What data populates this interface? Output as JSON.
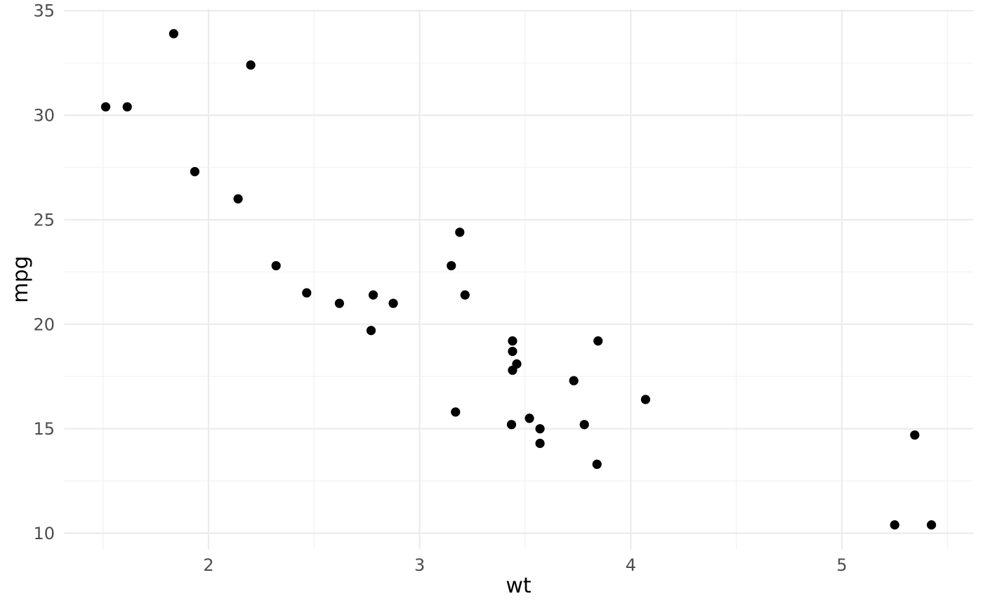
{
  "chart_data": {
    "type": "scatter",
    "title": "",
    "xlabel": "wt",
    "ylabel": "mpg",
    "x_ticks": [
      2,
      3,
      4,
      5
    ],
    "y_ticks": [
      10,
      15,
      20,
      25,
      30,
      35
    ],
    "x_minor": [
      1.5,
      2.5,
      3.5,
      4.5,
      5.5
    ],
    "y_minor": [
      12.5,
      17.5,
      22.5,
      27.5,
      32.5
    ],
    "xlim": [
      1.317,
      5.62
    ],
    "ylim": [
      9.225,
      35.075
    ],
    "grid": "major+minor",
    "legend": "none",
    "point_radius": 6.6,
    "colors": {
      "point": "#000000",
      "grid_major": "#ebebeb",
      "grid_minor": "#f4f4f4",
      "tick_text": "#4d4d4d",
      "axis_title": "#000000",
      "background": "#ffffff"
    },
    "points": [
      {
        "wt": 2.62,
        "mpg": 21.0
      },
      {
        "wt": 2.875,
        "mpg": 21.0
      },
      {
        "wt": 2.32,
        "mpg": 22.8
      },
      {
        "wt": 3.215,
        "mpg": 21.4
      },
      {
        "wt": 3.44,
        "mpg": 18.7
      },
      {
        "wt": 3.46,
        "mpg": 18.1
      },
      {
        "wt": 3.57,
        "mpg": 14.3
      },
      {
        "wt": 3.19,
        "mpg": 24.4
      },
      {
        "wt": 3.15,
        "mpg": 22.8
      },
      {
        "wt": 3.44,
        "mpg": 19.2
      },
      {
        "wt": 3.44,
        "mpg": 17.8
      },
      {
        "wt": 4.07,
        "mpg": 16.4
      },
      {
        "wt": 3.73,
        "mpg": 17.3
      },
      {
        "wt": 3.78,
        "mpg": 15.2
      },
      {
        "wt": 5.25,
        "mpg": 10.4
      },
      {
        "wt": 5.424,
        "mpg": 10.4
      },
      {
        "wt": 5.345,
        "mpg": 14.7
      },
      {
        "wt": 2.2,
        "mpg": 32.4
      },
      {
        "wt": 1.615,
        "mpg": 30.4
      },
      {
        "wt": 1.835,
        "mpg": 33.9
      },
      {
        "wt": 2.465,
        "mpg": 21.5
      },
      {
        "wt": 3.52,
        "mpg": 15.5
      },
      {
        "wt": 3.435,
        "mpg": 15.2
      },
      {
        "wt": 3.84,
        "mpg": 13.3
      },
      {
        "wt": 3.845,
        "mpg": 19.2
      },
      {
        "wt": 1.935,
        "mpg": 27.3
      },
      {
        "wt": 2.14,
        "mpg": 26.0
      },
      {
        "wt": 1.513,
        "mpg": 30.4
      },
      {
        "wt": 3.17,
        "mpg": 15.8
      },
      {
        "wt": 2.77,
        "mpg": 19.7
      },
      {
        "wt": 3.57,
        "mpg": 15.0
      },
      {
        "wt": 2.78,
        "mpg": 21.4
      }
    ]
  }
}
